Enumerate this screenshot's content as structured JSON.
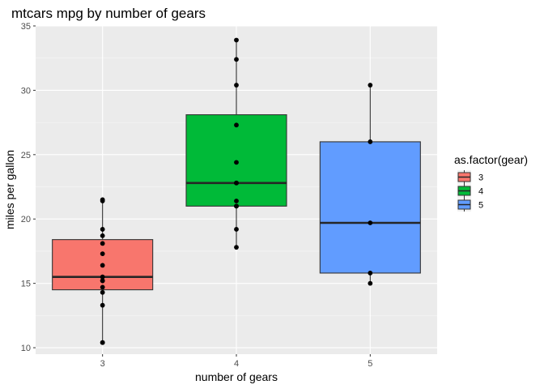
{
  "chart_data": {
    "type": "boxplot",
    "title": "mtcars mpg by number of gears",
    "xlabel": "number of gears",
    "ylabel": "miles per gallon",
    "ylim": [
      9.5,
      35
    ],
    "y_ticks": [
      10,
      15,
      20,
      25,
      30,
      35
    ],
    "categories": [
      "3",
      "4",
      "5"
    ],
    "grid": true,
    "legend": {
      "title": "as.factor(gear)",
      "position": "right",
      "entries": [
        "3",
        "4",
        "5"
      ]
    },
    "colors": [
      "#F8766D",
      "#00BA38",
      "#619CFF"
    ],
    "boxes": [
      {
        "category": "3",
        "whisker_low": 10.4,
        "q1": 14.5,
        "median": 15.5,
        "q3": 18.4,
        "whisker_high": 21.5
      },
      {
        "category": "4",
        "whisker_low": 17.8,
        "q1": 21.0,
        "median": 22.8,
        "q3": 28.1,
        "whisker_high": 33.9
      },
      {
        "category": "5",
        "whisker_low": 15.0,
        "q1": 15.8,
        "median": 19.7,
        "q3": 26.0,
        "whisker_high": 30.4
      }
    ],
    "points": [
      {
        "category": "3",
        "values": [
          21.4,
          21.5,
          18.7,
          18.1,
          14.3,
          16.4,
          17.3,
          15.2,
          10.4,
          10.4,
          14.7,
          15.5,
          15.2,
          13.3,
          19.2
        ]
      },
      {
        "category": "4",
        "values": [
          21.0,
          21.0,
          22.8,
          24.4,
          22.8,
          19.2,
          17.8,
          32.4,
          30.4,
          33.9,
          27.3,
          21.4
        ]
      },
      {
        "category": "5",
        "values": [
          26.0,
          30.4,
          15.8,
          19.7,
          15.0
        ]
      }
    ]
  }
}
